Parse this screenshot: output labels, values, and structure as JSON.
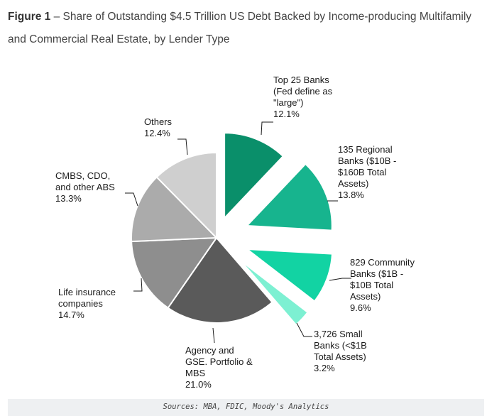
{
  "figure": {
    "label": "Figure 1",
    "title_rest": " – Share of Outstanding $4.5 Trillion US Debt Backed by Income-producing Multifamily and Commercial Real Estate, by Lender Type"
  },
  "chart_data": {
    "type": "pie",
    "title": "Figure 1 – Share of Outstanding $4.5 Trillion US Debt Backed by Income-producing Multifamily and Commercial Real Estate, by Lender Type",
    "unit": "%",
    "slices": [
      {
        "label": "Top 25 Banks\n(Fed define as\n\"large\")",
        "value": 12.1,
        "value_text": "12.1%",
        "color": "#0a8f6a",
        "exploded": true
      },
      {
        "label": "135 Regional\nBanks ($10B -\n$160B Total\nAssets)",
        "value": 13.8,
        "value_text": "13.8%",
        "color": "#17b48e",
        "exploded": true
      },
      {
        "label": "829 Community\nBanks ($1B -\n$10B Total\nAssets)",
        "value": 9.6,
        "value_text": "9.6%",
        "color": "#12d3a3",
        "exploded": true
      },
      {
        "label": "3,726 Small\nBanks (<$1B\nTotal Assets)",
        "value": 3.2,
        "value_text": "3.2%",
        "color": "#7df0d2",
        "exploded": true
      },
      {
        "label": "Agency and\nGSE. Portfolio &\nMBS",
        "value": 21.0,
        "value_text": "21.0%",
        "color": "#5a5a5a",
        "exploded": false
      },
      {
        "label": "Life insurance\ncompanies",
        "value": 14.7,
        "value_text": "14.7%",
        "color": "#8e8e8e",
        "exploded": false
      },
      {
        "label": "CMBS, CDO,\nand other ABS",
        "value": 13.3,
        "value_text": "13.3%",
        "color": "#ababab",
        "exploded": false
      },
      {
        "label": "Others",
        "value": 12.4,
        "value_text": "12.4%",
        "color": "#cfcfcf",
        "exploded": false
      }
    ]
  },
  "footer": {
    "source": "Sources: MBA, FDIC, Moody's Analytics"
  }
}
